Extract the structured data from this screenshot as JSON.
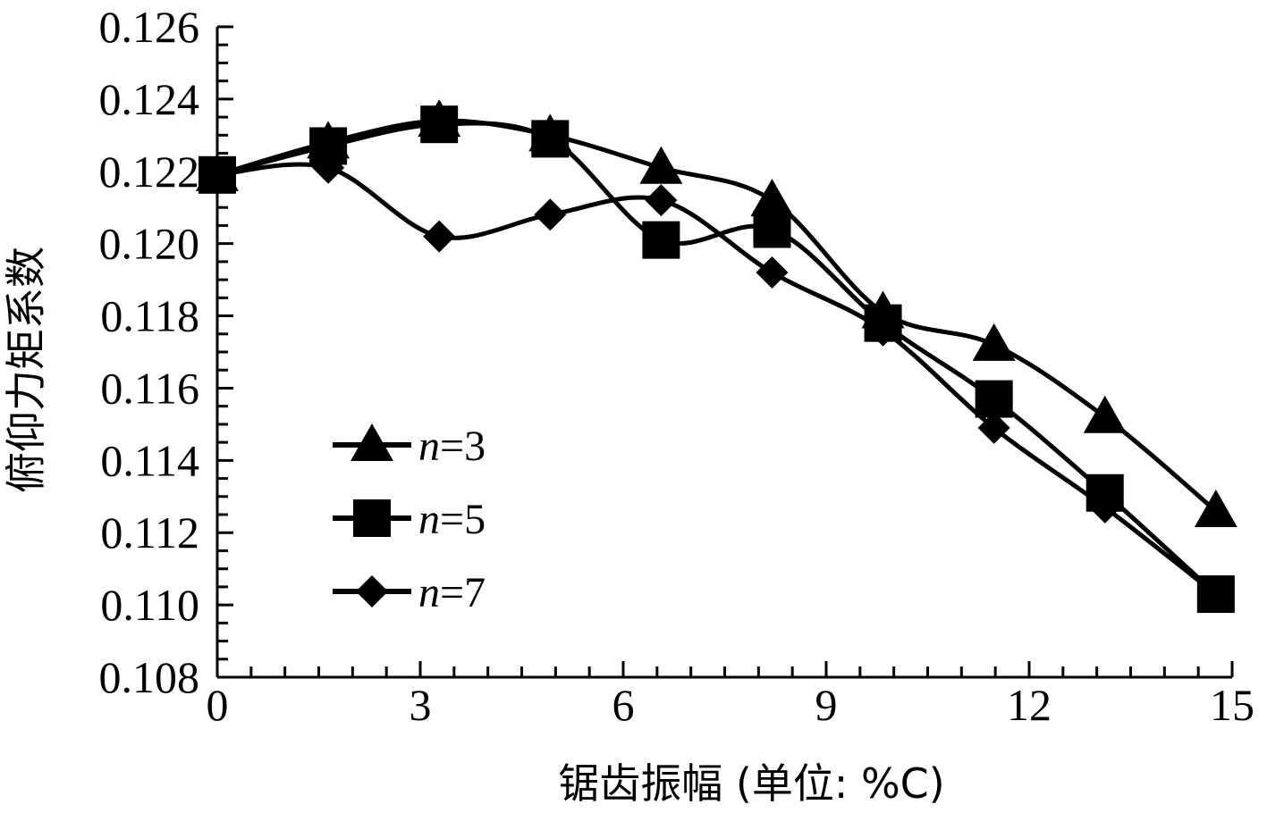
{
  "chart_data": {
    "type": "line",
    "title": "",
    "xlabel": "锯齿振幅 (单位: %C)",
    "ylabel": "俯仰力矩系数",
    "xlim": [
      0,
      15
    ],
    "ylim": [
      0.108,
      0.126
    ],
    "xticks": [
      "0",
      "3",
      "6",
      "9",
      "12",
      "15"
    ],
    "yticks": [
      "0.108",
      "0.110",
      "0.112",
      "0.114",
      "0.116",
      "0.118",
      "0.120",
      "0.122",
      "0.124",
      "0.126"
    ],
    "grid": false,
    "legend_position": "left-middle",
    "series": [
      {
        "name": "n=3",
        "marker": "triangle",
        "x": [
          0,
          1.64,
          3.28,
          4.92,
          6.56,
          8.2,
          9.84,
          11.48,
          13.12,
          14.76
        ],
        "y": [
          0.1219,
          0.1228,
          0.1234,
          0.123,
          0.1221,
          0.1212,
          0.1181,
          0.1172,
          0.1152,
          0.1126
        ]
      },
      {
        "name": "n=5",
        "marker": "square",
        "x": [
          0,
          1.64,
          3.28,
          4.92,
          6.56,
          8.2,
          9.84,
          11.48,
          13.12,
          14.76
        ],
        "y": [
          0.1219,
          0.1227,
          0.1233,
          0.1229,
          0.1201,
          0.1204,
          0.1178,
          0.1157,
          0.1131,
          0.1103
        ]
      },
      {
        "name": "n=7",
        "marker": "diamond",
        "x": [
          0,
          1.64,
          3.28,
          4.92,
          6.56,
          8.2,
          9.84,
          11.48,
          13.12,
          14.76
        ],
        "y": [
          0.1219,
          0.1221,
          0.1202,
          0.1208,
          0.1212,
          0.1192,
          0.1176,
          0.1149,
          0.1127,
          0.1103
        ]
      }
    ]
  }
}
